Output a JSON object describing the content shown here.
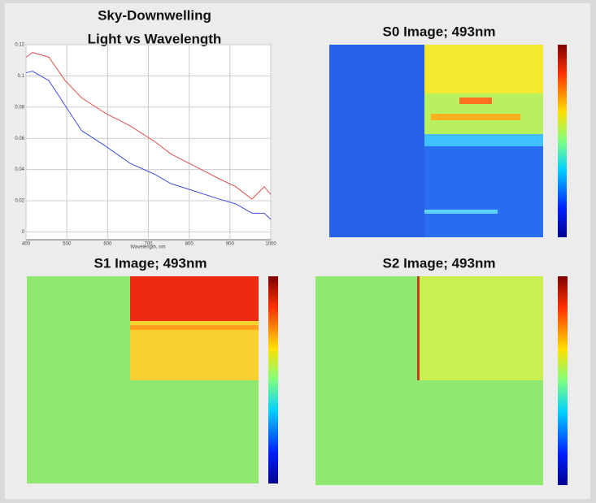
{
  "chart_data": {
    "type": "line",
    "title": [
      "Sky-Downwelling",
      "Light vs Wavelength"
    ],
    "x_label": "Wavelength, nm",
    "x": [
      400,
      416,
      456,
      496,
      536,
      595,
      655,
      715,
      755,
      815,
      874,
      914,
      954,
      984,
      1000
    ],
    "series": [
      {
        "color": "#e05050",
        "values": [
          0.112,
          0.115,
          0.112,
          0.097,
          0.086,
          0.076,
          0.068,
          0.058,
          0.05,
          0.042,
          0.034,
          0.029,
          0.021,
          0.029,
          0.024
        ]
      },
      {
        "color": "#4050e0",
        "values": [
          0.102,
          0.103,
          0.097,
          0.081,
          0.065,
          0.055,
          0.044,
          0.037,
          0.031,
          0.026,
          0.021,
          0.018,
          0.012,
          0.012,
          0.008
        ]
      }
    ],
    "xlim": [
      400,
      1000
    ],
    "ylim": [
      -0.005,
      0.12
    ],
    "xticks": [
      400,
      500,
      600,
      700,
      800,
      900,
      1000
    ],
    "yticks": [
      0,
      0.02,
      0.04,
      0.06,
      0.08,
      0.1,
      0.12
    ],
    "grid": true
  },
  "panels": [
    {
      "title": "S0 Image; 493nm"
    },
    {
      "title": "S1 Image; 493nm"
    },
    {
      "title": "S2 Image; 493nm"
    }
  ]
}
